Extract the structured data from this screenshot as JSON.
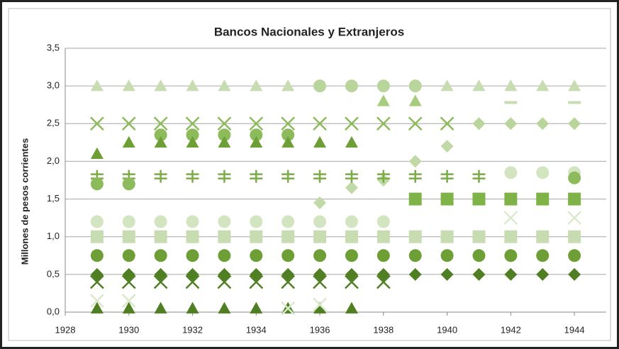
{
  "chart_data": {
    "type": "scatter",
    "title": "Bancos Nacionales y Extranjeros",
    "y_label": "Millones de pesos corrientes",
    "x": [
      1929,
      1930,
      1931,
      1932,
      1933,
      1934,
      1935,
      1936,
      1937,
      1938,
      1939,
      1940,
      1941,
      1942,
      1943,
      1944
    ],
    "xlim": [
      1928,
      1945
    ],
    "xticks": [
      1928,
      1930,
      1932,
      1934,
      1936,
      1938,
      1940,
      1942,
      1944
    ],
    "ylim": [
      0,
      3.5
    ],
    "yticks": [
      {
        "value": 0,
        "label": "0,0"
      },
      {
        "value": 0.5,
        "label": "0,5"
      },
      {
        "value": 1,
        "label": "1,0"
      },
      {
        "value": 1.5,
        "label": "1,5"
      },
      {
        "value": 2,
        "label": "2,0"
      },
      {
        "value": 2.5,
        "label": "2,5"
      },
      {
        "value": 3,
        "label": "3,0"
      },
      {
        "value": 3.5,
        "label": "3,5"
      }
    ],
    "grid": true,
    "series": [
      {
        "marker": "triangle",
        "color": "#c7dcb0",
        "values": [
          3,
          3,
          3,
          3,
          3,
          3,
          3,
          null,
          null,
          null,
          null,
          3,
          3,
          3,
          3,
          3
        ]
      },
      {
        "marker": "circle",
        "color": "#b9d59c",
        "values": [
          null,
          null,
          null,
          null,
          null,
          null,
          null,
          3,
          3,
          3,
          3,
          null,
          null,
          null,
          null,
          null
        ]
      },
      {
        "marker": "triangle",
        "color": "#a8cc7e",
        "values": [
          null,
          null,
          null,
          null,
          null,
          null,
          null,
          null,
          null,
          2.8,
          2.8,
          null,
          null,
          null,
          null,
          null
        ]
      },
      {
        "marker": "dash",
        "color": "#c7dcb0",
        "values": [
          null,
          null,
          null,
          null,
          null,
          null,
          null,
          null,
          null,
          null,
          null,
          null,
          null,
          2.78,
          null,
          2.78
        ]
      },
      {
        "marker": "x",
        "color": "#8dbb5c",
        "values": [
          2.5,
          2.5,
          2.5,
          2.5,
          2.5,
          2.5,
          2.5,
          2.5,
          2.5,
          2.5,
          2.5,
          2.5,
          null,
          null,
          null,
          null
        ]
      },
      {
        "marker": "diamond",
        "color": "#b9d59c",
        "values": [
          null,
          null,
          null,
          null,
          null,
          null,
          null,
          null,
          null,
          null,
          null,
          null,
          2.5,
          2.5,
          2.5,
          2.5
        ]
      },
      {
        "marker": "circle",
        "color": "#8dbb5c",
        "values": [
          null,
          null,
          2.35,
          2.35,
          2.35,
          2.35,
          2.35,
          null,
          null,
          null,
          null,
          null,
          null,
          null,
          null,
          null
        ]
      },
      {
        "marker": "triangle",
        "color": "#6e9f36",
        "values": [
          2.1,
          2.25,
          2.25,
          2.25,
          2.25,
          2.25,
          2.25,
          2.25,
          2.25,
          null,
          null,
          null,
          null,
          null,
          null,
          null
        ]
      },
      {
        "marker": "diamond",
        "color": "#c0d9a6",
        "values": [
          null,
          null,
          null,
          null,
          null,
          null,
          null,
          1.45,
          1.65,
          1.75,
          2,
          2.2,
          null,
          null,
          null,
          null
        ]
      },
      {
        "marker": "plus",
        "color": "#7aab45",
        "values": [
          1.8,
          1.8,
          1.8,
          1.8,
          1.8,
          1.8,
          1.8,
          1.8,
          1.8,
          1.8,
          1.8,
          1.8,
          1.8,
          null,
          null,
          null
        ]
      },
      {
        "marker": "circle",
        "color": "#d3e5c0",
        "values": [
          null,
          null,
          null,
          null,
          null,
          null,
          null,
          null,
          null,
          null,
          null,
          null,
          null,
          1.85,
          1.85,
          1.85
        ]
      },
      {
        "marker": "circle",
        "color": "#8dbb5c",
        "values": [
          1.7,
          1.7,
          null,
          null,
          null,
          null,
          null,
          null,
          null,
          null,
          null,
          null,
          null,
          null,
          null,
          1.78
        ]
      },
      {
        "marker": "square",
        "color": "#7fb347",
        "values": [
          null,
          null,
          null,
          null,
          null,
          null,
          null,
          null,
          null,
          null,
          1.5,
          1.5,
          1.5,
          1.5,
          1.5,
          1.5
        ]
      },
      {
        "marker": "circle",
        "color": "#d3e5c0",
        "values": [
          1.2,
          1.2,
          1.2,
          1.2,
          1.2,
          1.2,
          1.2,
          1.2,
          1.2,
          1.2,
          null,
          null,
          null,
          null,
          null,
          null
        ]
      },
      {
        "marker": "square",
        "color": "#c7dcb0",
        "values": [
          1,
          1,
          1,
          1,
          1,
          1,
          1,
          1,
          1,
          1,
          1,
          1,
          1,
          1,
          1,
          1
        ]
      },
      {
        "marker": "x",
        "color": "#dbe9cc",
        "values": [
          null,
          null,
          null,
          null,
          null,
          null,
          null,
          null,
          null,
          null,
          null,
          null,
          null,
          1.25,
          null,
          1.25
        ]
      },
      {
        "marker": "circle",
        "color": "#6e9f36",
        "values": [
          0.75,
          0.75,
          0.75,
          0.75,
          0.75,
          0.75,
          0.75,
          0.75,
          0.75,
          0.75,
          0.75,
          0.75,
          0.75,
          0.75,
          0.75,
          0.75
        ]
      },
      {
        "marker": "diamond",
        "color": "#4f7f22",
        "values": [
          0.5,
          0.5,
          0.5,
          0.5,
          0.5,
          0.5,
          0.5,
          0.5,
          0.5,
          0.5,
          0.5,
          0.5,
          0.5,
          0.5,
          0.5,
          0.5
        ]
      },
      {
        "marker": "x",
        "color": "#4f7f22",
        "values": [
          0.4,
          0.4,
          0.4,
          0.4,
          0.4,
          0.4,
          0.4,
          0.4,
          0.4,
          0.4,
          null,
          null,
          null,
          null,
          null,
          null
        ]
      },
      {
        "marker": "triangle",
        "color": "#4f7f22",
        "values": [
          0.05,
          0.05,
          0.05,
          0.05,
          0.05,
          0.05,
          0.05,
          0.05,
          0.05,
          null,
          null,
          null,
          null,
          null,
          null,
          null
        ]
      },
      {
        "marker": "x",
        "color": "#dbe9cc",
        "values": [
          0.15,
          0.15,
          null,
          null,
          null,
          null,
          0.05,
          0.1,
          null,
          null,
          null,
          null,
          null,
          null,
          null,
          null
        ]
      }
    ]
  }
}
